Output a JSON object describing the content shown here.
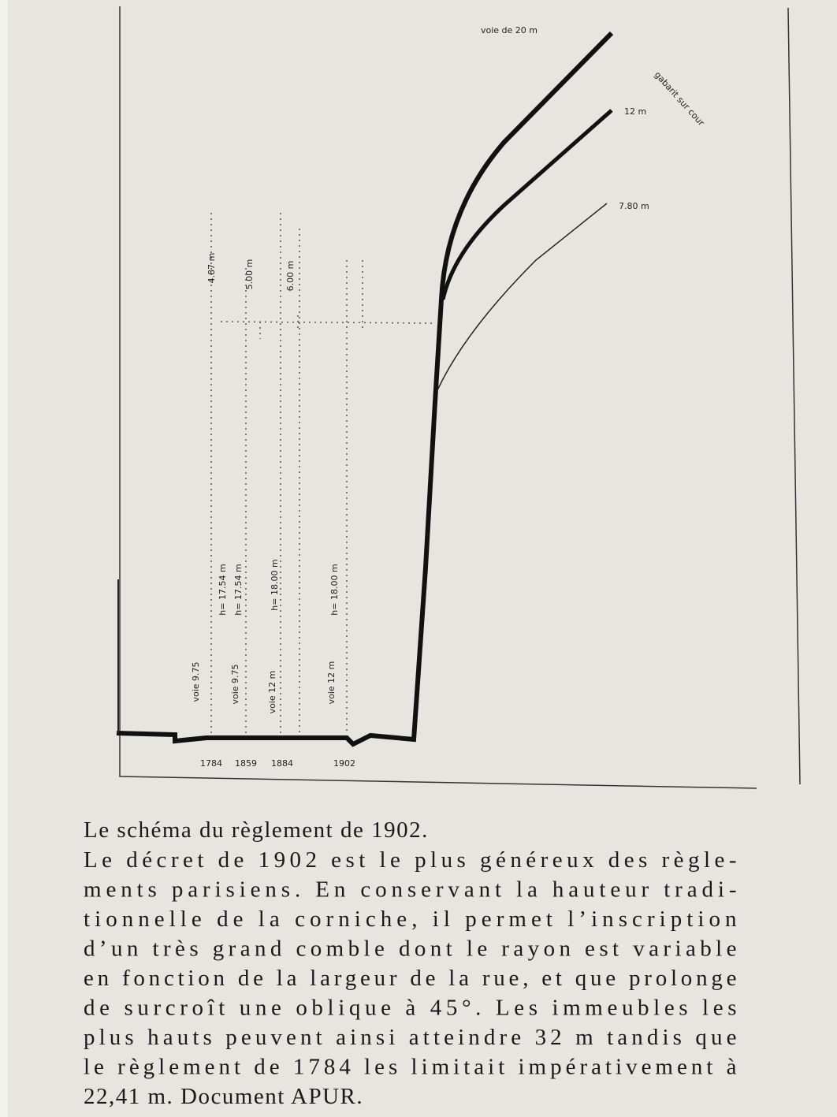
{
  "diagram": {
    "street_labels": [
      "voie de 20 m",
      "gabarit sur cour",
      "12 m",
      "7.80 m"
    ],
    "roof_heights": [
      "4.87 m",
      "5.00 m",
      "6.00 m"
    ],
    "cornice_heights": [
      "h= 17.54 m",
      "h= 17.54 m",
      "h= 18.00 m",
      "h= 18.00 m"
    ],
    "street_widths": [
      "voie 9.75",
      "voie 9.75",
      "voie 12 m",
      "voie 12 m"
    ],
    "years": [
      "1784",
      "1859",
      "1884",
      "1902"
    ]
  },
  "caption": {
    "title": "Le schéma du règlement de 1902.",
    "lines": [
      "Le décret de 1902 est le plus généreux des règle-",
      "ments parisiens. En conservant la hauteur tradi-",
      "tionnelle de la corniche, il permet l’inscription",
      "d’un très grand comble dont le rayon est variable",
      "en fonction de la largeur de la rue, et que prolonge",
      "de surcroît une oblique à 45°. Les immeubles les",
      "plus hauts peuvent ainsi atteindre 32 m tandis que",
      "le règlement de 1784 les limitait impérativement à",
      "22,41 m. Document APUR."
    ]
  }
}
